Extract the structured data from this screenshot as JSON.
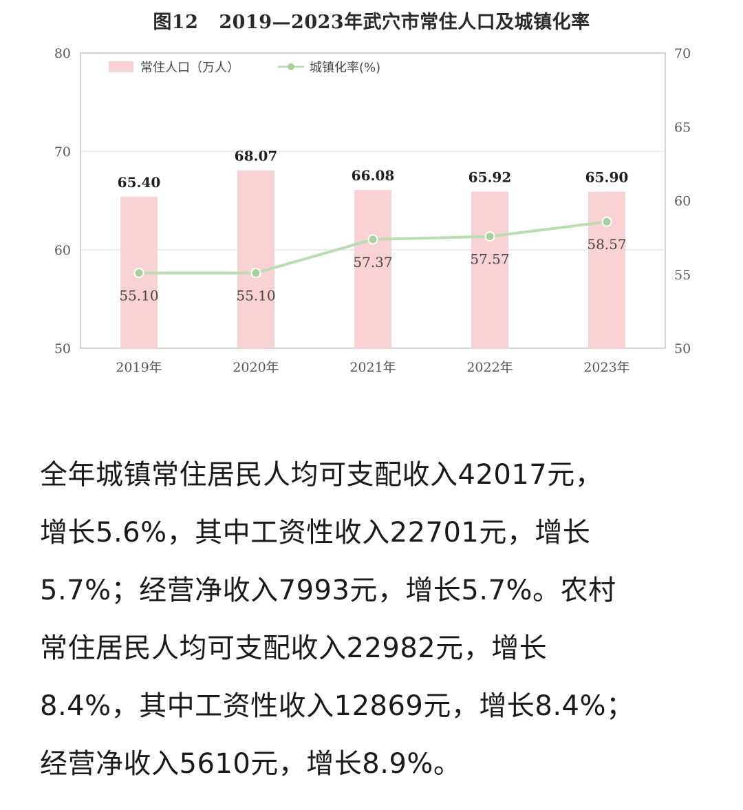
{
  "figure": {
    "number": "图12",
    "title": "2019—2023年武穴市常住人口及城镇化率"
  },
  "chart_data": {
    "type": "bar",
    "categories": [
      "2019年",
      "2020年",
      "2021年",
      "2022年",
      "2023年"
    ],
    "series": [
      {
        "name": "常住人口（万人）",
        "type": "bar",
        "axis": "left",
        "values": [
          65.4,
          68.07,
          66.08,
          65.92,
          65.9
        ],
        "labels": [
          "65.40",
          "68.07",
          "66.08",
          "65.92",
          "65.90"
        ],
        "color": "#f9d2d6"
      },
      {
        "name": "城镇化率(%)",
        "type": "line",
        "axis": "right",
        "values": [
          55.1,
          55.1,
          57.37,
          57.57,
          58.57
        ],
        "labels": [
          "55.10",
          "55.10",
          "57.37",
          "57.57",
          "58.57"
        ],
        "color": "#b9dcb0"
      }
    ],
    "y_left": {
      "ylim": [
        50,
        80
      ],
      "ticks": [
        "50",
        "60",
        "70",
        "80"
      ]
    },
    "y_right": {
      "ylim": [
        50,
        70
      ],
      "ticks": [
        "50",
        "55",
        "60",
        "65",
        "70"
      ]
    },
    "grid": true,
    "legend_position": "top-left"
  },
  "body": {
    "lines": [
      "全年城镇常住居民人均可支配收入42017元，",
      "增长5.6%，其中工资性收入22701元，增长",
      "5.7%；经营净收入7993元，增长5.7%。农村",
      "常住居民人均可支配收入22982元，增长",
      "8.4%，其中工资性收入12869元，增长8.4%；",
      "经营净收入5610元，增长8.9%。"
    ]
  }
}
